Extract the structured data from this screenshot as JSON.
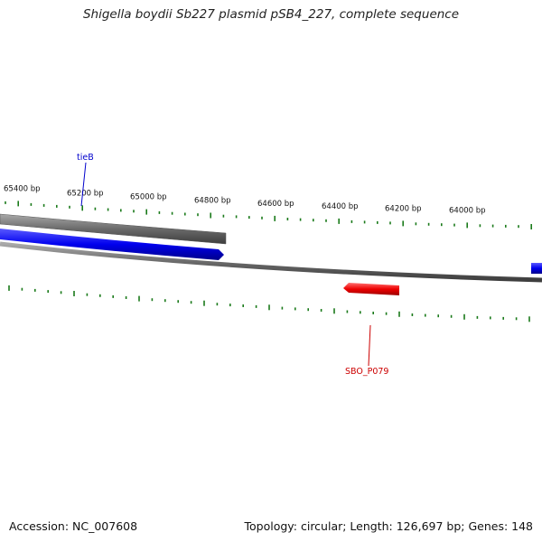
{
  "title": "Shigella boydii Sb227 plasmid pSB4_227, complete sequence",
  "ruler": {
    "tick_labels": [
      "65400 bp",
      "65200 bp",
      "65000 bp",
      "64800 bp",
      "64600 bp",
      "64400 bp",
      "64200 bp",
      "64000 bp"
    ],
    "tick_color": "#1a7a1a"
  },
  "genes": [
    {
      "name": "tieB",
      "strand": "forward",
      "color": "#0000cc"
    },
    {
      "name": "SBO_P079",
      "strand": "reverse",
      "color": "#cc0000"
    }
  ],
  "colors": {
    "backbone": "#808080",
    "feature_track": "#666666",
    "forward_gene": "#0000ee",
    "reverse_gene": "#ee0000"
  },
  "footer": {
    "accession": "Accession: NC_007608",
    "topology": "Topology: circular; Length: 126,697 bp; Genes: 148"
  }
}
